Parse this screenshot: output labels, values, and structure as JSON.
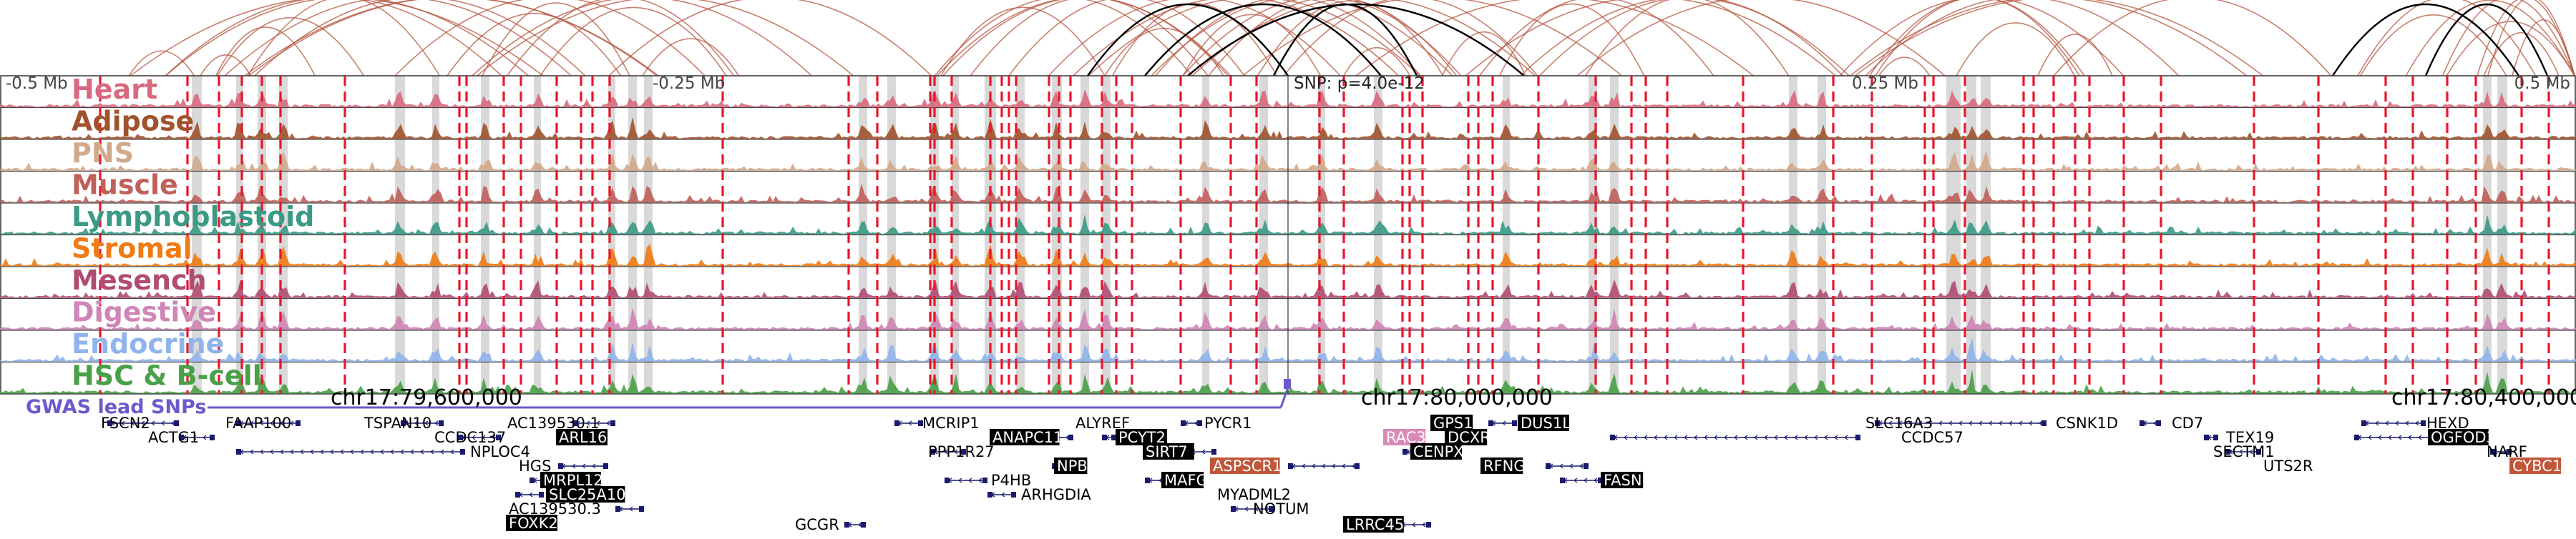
{
  "axis": {
    "ticks": [
      {
        "label": "-0.5 Mb",
        "anchor": "start"
      },
      {
        "label": "-0.25 Mb",
        "anchor": "start"
      },
      {
        "label": "0.25 Mb",
        "anchor": "start"
      },
      {
        "label": "0.5 Mb",
        "anchor": "end"
      }
    ],
    "snp_label": "SNP: p=4.0e-12"
  },
  "tracks": [
    {
      "name": "Heart",
      "color": "#d96a7e"
    },
    {
      "name": "Adipose",
      "color": "#a0522d"
    },
    {
      "name": "PNS",
      "color": "#d2a98b"
    },
    {
      "name": "Muscle",
      "color": "#c0605a"
    },
    {
      "name": "Lymphoblastoid",
      "color": "#3a9a85"
    },
    {
      "name": "Stromal",
      "color": "#f07a14"
    },
    {
      "name": "Mesench",
      "color": "#b04c72"
    },
    {
      "name": "Digestive",
      "color": "#cf85b5"
    },
    {
      "name": "Endocrine",
      "color": "#8fb4ec"
    },
    {
      "name": "HSC & B-cell",
      "color": "#4aa046"
    }
  ],
  "gwas_label": "GWAS lead SNPs",
  "coordinates": [
    "chr17:79,600,000",
    "chr17:80,000,000",
    "chr17:80,400,000"
  ],
  "genes": [
    {
      "name": "FSCN2",
      "style": "plain"
    },
    {
      "name": "ACTG1",
      "style": "plain"
    },
    {
      "name": "FAAP100",
      "style": "plain"
    },
    {
      "name": "TSPAN10",
      "style": "plain"
    },
    {
      "name": "CCDC137",
      "style": "plain"
    },
    {
      "name": "AC139530.1",
      "style": "plain"
    },
    {
      "name": "ARL16",
      "style": "dark"
    },
    {
      "name": "NPLOC4",
      "style": "plain"
    },
    {
      "name": "HGS",
      "style": "plain"
    },
    {
      "name": "MRPL12",
      "style": "dark"
    },
    {
      "name": "SLC25A10",
      "style": "dark"
    },
    {
      "name": "AC139530.3",
      "style": "plain"
    },
    {
      "name": "FOXK2",
      "style": "dark"
    },
    {
      "name": "GCGR",
      "style": "plain"
    },
    {
      "name": "MCRIP1",
      "style": "plain"
    },
    {
      "name": "PPP1R27",
      "style": "plain"
    },
    {
      "name": "P4HB",
      "style": "plain"
    },
    {
      "name": "ARHGDIA",
      "style": "plain"
    },
    {
      "name": "ANAPC11",
      "style": "dark"
    },
    {
      "name": "NPB",
      "style": "dark"
    },
    {
      "name": "ALYREF",
      "style": "plain"
    },
    {
      "name": "PCYT2",
      "style": "dark"
    },
    {
      "name": "SIRT7",
      "style": "dark"
    },
    {
      "name": "MAFG",
      "style": "dark"
    },
    {
      "name": "PYCR1",
      "style": "plain"
    },
    {
      "name": "ASPSCR1",
      "style": "red"
    },
    {
      "name": "MYADML2",
      "style": "plain"
    },
    {
      "name": "NOTUM",
      "style": "plain"
    },
    {
      "name": "RAC3",
      "style": "pink"
    },
    {
      "name": "GPS1",
      "style": "dark"
    },
    {
      "name": "DCXR",
      "style": "dark"
    },
    {
      "name": "CENPX",
      "style": "dark"
    },
    {
      "name": "DUS1L",
      "style": "dark"
    },
    {
      "name": "RFNG",
      "style": "dark"
    },
    {
      "name": "LRRC45",
      "style": "dark"
    },
    {
      "name": "FASN",
      "style": "dark"
    },
    {
      "name": "SLC16A3",
      "style": "plain"
    },
    {
      "name": "CCDC57",
      "style": "plain"
    },
    {
      "name": "CSNK1D",
      "style": "plain"
    },
    {
      "name": "CD7",
      "style": "plain"
    },
    {
      "name": "TEX19",
      "style": "plain"
    },
    {
      "name": "SECTM1",
      "style": "plain"
    },
    {
      "name": "UTS2R",
      "style": "plain"
    },
    {
      "name": "HEXD",
      "style": "plain"
    },
    {
      "name": "OGFOD3",
      "style": "dark"
    },
    {
      "name": "NARF",
      "style": "plain"
    },
    {
      "name": "CYBC1",
      "style": "red"
    }
  ],
  "colors": {
    "arc": "#b5553f",
    "arc_highlight": "#000000",
    "snp_line": "#e8162b",
    "shade": "#d9d9d9",
    "gwas": "#6a5acd",
    "gene_dark_bg": "#000000",
    "gene_red_bg": "#c0573a",
    "gene_pink_bg": "#d98ab6"
  }
}
